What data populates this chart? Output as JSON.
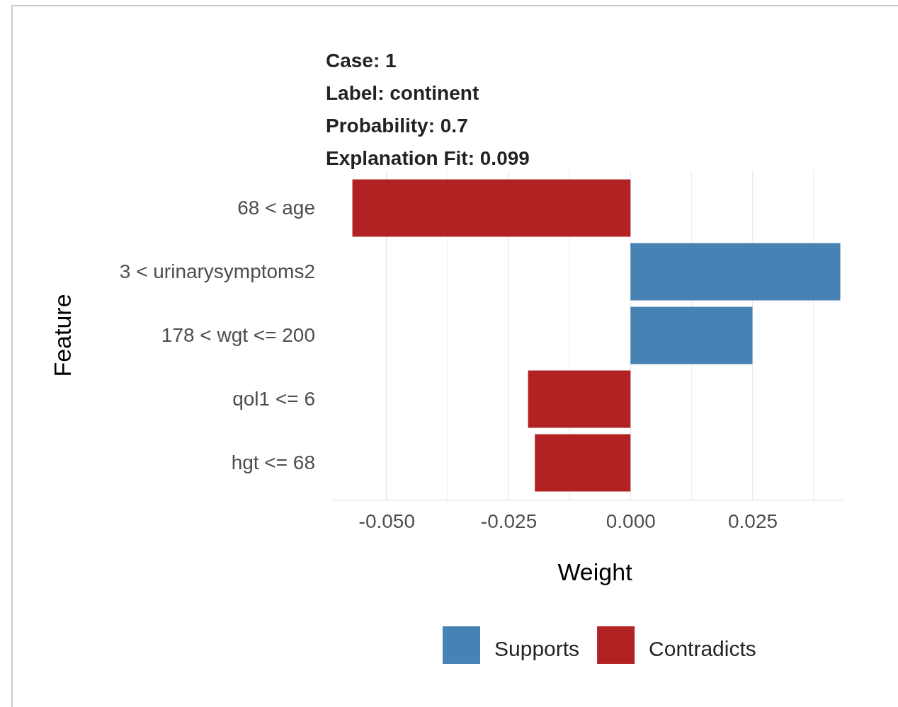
{
  "chart_data": {
    "type": "bar",
    "orientation": "horizontal",
    "title": "Case: 1",
    "subtitle": "Label: continent",
    "annotations": [
      "Probability: 0.7",
      "Explanation Fit: 0.099"
    ],
    "xlabel": "Weight",
    "ylabel": "Feature",
    "categories": [
      "68 < age",
      "3 < urinarysymptoms2",
      "178 < wgt <= 200",
      "qol1 <= 6",
      "hgt <= 68"
    ],
    "series": [
      {
        "name": "Supports",
        "color": "#4682b4",
        "values": [
          null,
          0.043,
          0.025,
          null,
          null
        ]
      },
      {
        "name": "Contradicts",
        "color": "#b22222",
        "values": [
          -0.057,
          null,
          null,
          -0.021,
          -0.0196
        ]
      }
    ],
    "xticks": [
      {
        "value": -0.05,
        "label": "-0.050"
      },
      {
        "value": -0.0375,
        "label": null
      },
      {
        "value": -0.025,
        "label": "-0.025"
      },
      {
        "value": -0.0125,
        "label": null
      },
      {
        "value": 0,
        "label": "0.000"
      },
      {
        "value": 0.0125,
        "label": null
      },
      {
        "value": 0.025,
        "label": "0.025"
      },
      {
        "value": 0.0375,
        "label": null
      }
    ],
    "xlim": [
      -0.061,
      0.0435
    ],
    "grid": "x",
    "legend": "bottom"
  }
}
